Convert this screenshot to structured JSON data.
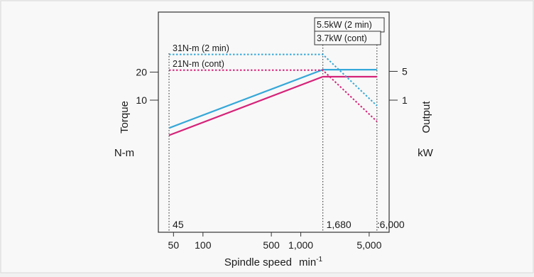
{
  "chart_data": {
    "type": "line",
    "xlabel": "Spindle speed",
    "xunit": "min",
    "xunit_exp": "-1",
    "xscale": "log",
    "xlim": [
      35,
      8000
    ],
    "x_ticks": [
      {
        "value": 50,
        "label": "50"
      },
      {
        "value": 100,
        "label": "100"
      },
      {
        "value": 500,
        "label": "500"
      },
      {
        "value": 1000,
        "label": "1,000"
      },
      {
        "value": 5000,
        "label": "5,000"
      }
    ],
    "left_axis": {
      "label": "Torque",
      "unit": "N-m",
      "scale": "log",
      "ticks": [
        {
          "value": 20,
          "label": "20"
        },
        {
          "value": 10,
          "label": "10"
        }
      ]
    },
    "right_axis": {
      "label": "Output",
      "unit": "kW",
      "scale": "log",
      "ticks": [
        {
          "value": 5,
          "label": "5"
        },
        {
          "value": 1,
          "label": "1"
        }
      ]
    },
    "series": [
      {
        "axis": "right",
        "color": "#35a8d8",
        "style": "solid",
        "points": [
          [
            45,
            0.21
          ],
          [
            1680,
            5.5
          ],
          [
            6000,
            5.5
          ]
        ]
      },
      {
        "axis": "right",
        "color": "#d6237a",
        "style": "solid",
        "points": [
          [
            45,
            0.14
          ],
          [
            1680,
            3.7
          ],
          [
            6000,
            3.7
          ]
        ]
      },
      {
        "axis": "left",
        "color": "#35a8d8",
        "style": "dotted",
        "points": [
          [
            45,
            31
          ],
          [
            1680,
            31
          ],
          [
            6000,
            8.7
          ]
        ]
      },
      {
        "axis": "left",
        "color": "#d6237a",
        "style": "dotted",
        "points": [
          [
            45,
            21
          ],
          [
            1680,
            21
          ],
          [
            6000,
            5.9
          ]
        ]
      }
    ],
    "series_labels": [
      {
        "text": "5.5kW (2 min)",
        "boxed": true
      },
      {
        "text": "3.7kW (cont)",
        "boxed": true
      },
      {
        "text": "31N-m (2 min)",
        "boxed": false
      },
      {
        "text": "21N-m (cont)",
        "boxed": false
      }
    ],
    "reference_lines": [
      {
        "x": 45,
        "label": "45"
      },
      {
        "x": 1680,
        "label": "1,680"
      },
      {
        "x": 6000,
        "label": ":6,000"
      }
    ],
    "grid": false
  }
}
